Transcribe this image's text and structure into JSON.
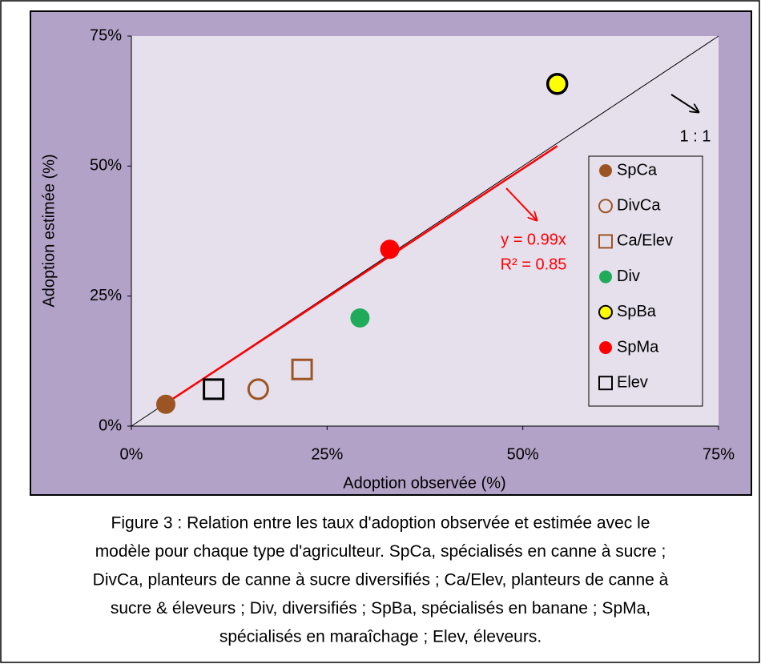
{
  "chart_data": {
    "type": "scatter",
    "x_label": "Adoption observée (%)",
    "y_label": "Adoption estimée (%)",
    "xlim": [
      0,
      75
    ],
    "ylim": [
      0,
      75
    ],
    "xticks": [
      {
        "value": 0,
        "label": "0%"
      },
      {
        "value": 25,
        "label": "25%"
      },
      {
        "value": 50,
        "label": "50%"
      },
      {
        "value": 75,
        "label": "75%"
      }
    ],
    "yticks": [
      {
        "value": 0,
        "label": "0%"
      },
      {
        "value": 25,
        "label": "25%"
      },
      {
        "value": 50,
        "label": "50%"
      },
      {
        "value": 75,
        "label": "75%"
      }
    ],
    "grid": false,
    "series": [
      {
        "name": "SpCa",
        "color": "#9c5423",
        "marker": "filled-circle",
        "x": [
          4.4
        ],
        "values": [
          4.2
        ]
      },
      {
        "name": "DivCa",
        "color": "#9c5423",
        "marker": "open-circle",
        "x": [
          16.2
        ],
        "values": [
          7.1
        ]
      },
      {
        "name": "Ca/Elev",
        "color": "#9c5423",
        "marker": "open-square",
        "x": [
          21.8
        ],
        "values": [
          10.9
        ]
      },
      {
        "name": "Div",
        "color": "#1fab5a",
        "marker": "filled-circle",
        "x": [
          29.2
        ],
        "values": [
          20.8
        ]
      },
      {
        "name": "SpBa",
        "color": "#ffff00",
        "marker": "outlined-circle",
        "x": [
          54.4
        ],
        "values": [
          65.8
        ]
      },
      {
        "name": "SpMa",
        "color": "#ff0000",
        "marker": "filled-circle",
        "x": [
          33.0
        ],
        "values": [
          34.0
        ]
      },
      {
        "name": "Elev",
        "color": "#000000",
        "marker": "open-square",
        "x": [
          10.5
        ],
        "values": [
          7.1
        ]
      }
    ],
    "identity_label": "1 : 1",
    "trendline": {
      "slope": 0.99,
      "color": "#ff0000",
      "equation": "y = 0.99x",
      "r2_label": "R² = 0.85"
    },
    "caption": [
      "Figure 3 : Relation entre les taux d'adoption observée et estimée avec le",
      "modèle pour chaque type d'agriculteur. SpCa, spécialisés en canne à sucre ;",
      "DivCa, planteurs de canne à sucre diversifiés ; Ca/Elev, planteurs de canne à",
      "sucre & éleveurs ; Div, diversifiés ; SpBa, spécialisés en banane ; SpMa,",
      "spécialisés en maraîchage ; Elev, éleveurs."
    ]
  }
}
